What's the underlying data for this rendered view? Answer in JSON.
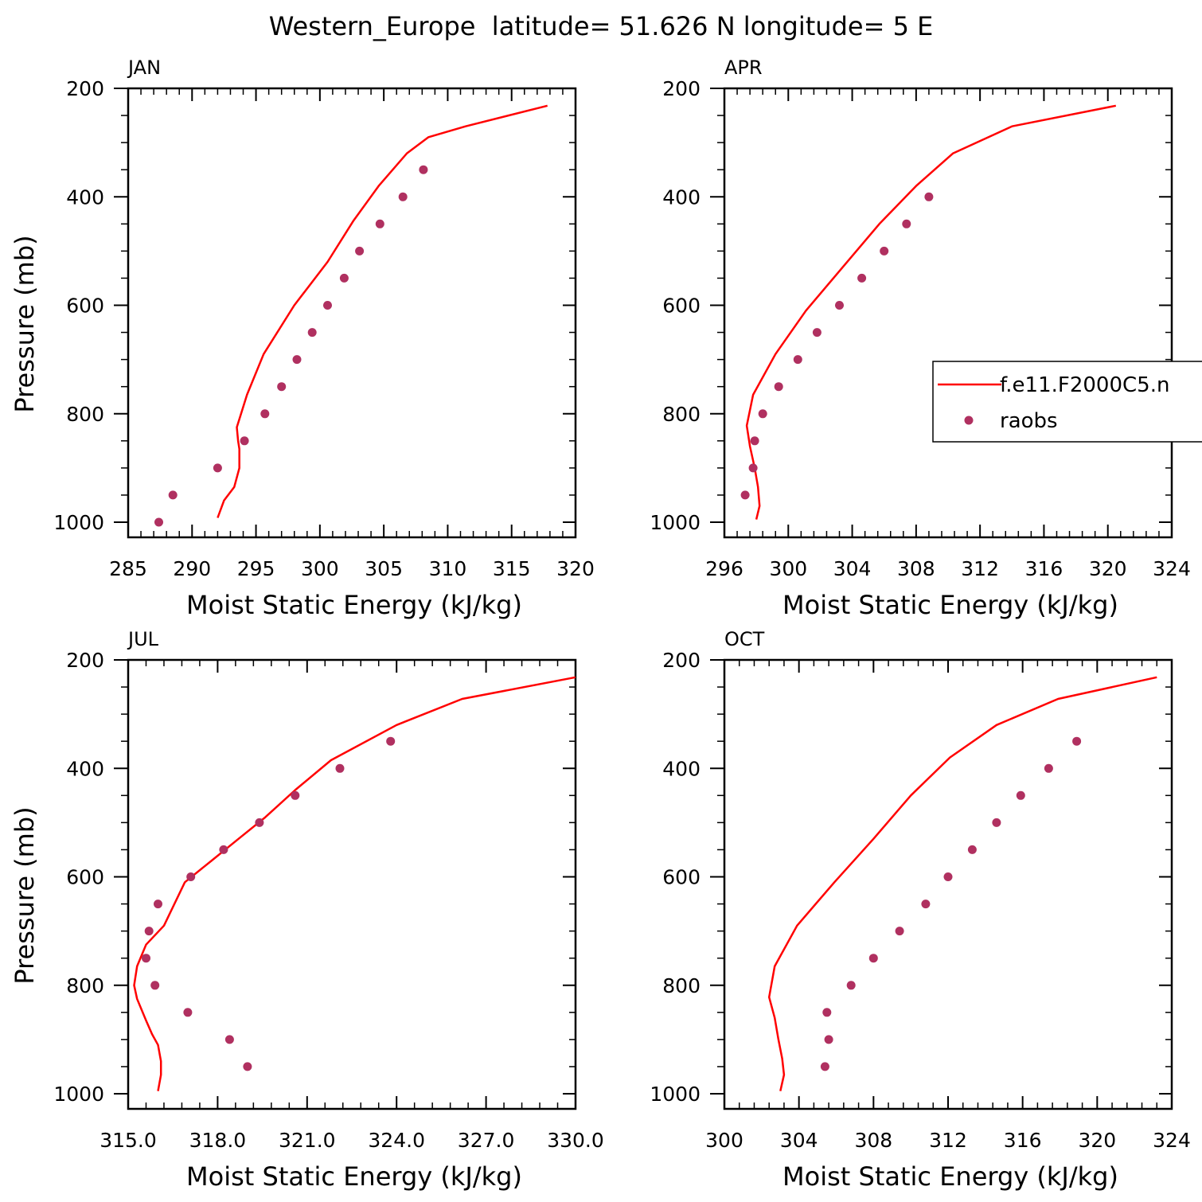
{
  "title": "Western_Europe  latitude= 51.626 N longitude= 5 E",
  "colors": {
    "model": "#ff0000",
    "obs": "#b03060",
    "axis": "#000000"
  },
  "legend": {
    "model_label": "f.e11.F2000C5.n",
    "obs_label": "raobs"
  },
  "chart_data": [
    {
      "type": "line",
      "panel": "JAN",
      "xlabel": "Moist Static Energy (kJ/kg)",
      "ylabel": "Pressure (mb)",
      "xlim": [
        285,
        320
      ],
      "xticks": [
        285,
        290,
        295,
        300,
        305,
        310,
        315,
        320
      ],
      "xtick_labels": [
        "285",
        "290",
        "295",
        "300",
        "305",
        "310",
        "315",
        "320"
      ],
      "ylim": [
        200,
        1000
      ],
      "yticks": [
        200,
        400,
        600,
        800,
        1000
      ],
      "ytick_labels": [
        "200",
        "400",
        "600",
        "800",
        "1000"
      ],
      "series": [
        {
          "kind": "line",
          "x": [
            292.0,
            292.5,
            293.3,
            293.7,
            293.7,
            293.6,
            293.5,
            294.3,
            295.6,
            298.0,
            300.6,
            302.6,
            304.6,
            306.8,
            308.5,
            311.4,
            317.8
          ],
          "y": [
            992,
            960,
            935,
            900,
            865,
            850,
            825,
            765,
            690,
            600,
            520,
            445,
            380,
            320,
            290,
            270,
            232
          ]
        },
        {
          "kind": "scatter",
          "x": [
            287.4,
            288.5,
            292.0,
            294.1,
            295.7,
            297.0,
            298.2,
            299.4,
            300.6,
            301.9,
            303.1,
            304.7,
            306.5,
            308.1
          ],
          "y": [
            1000,
            950,
            900,
            850,
            800,
            750,
            700,
            650,
            600,
            550,
            500,
            450,
            400,
            350
          ]
        }
      ]
    },
    {
      "type": "line",
      "panel": "APR",
      "xlabel": "Moist Static Energy (kJ/kg)",
      "ylabel": "",
      "xlim": [
        296,
        324
      ],
      "xticks": [
        296,
        300,
        304,
        308,
        312,
        316,
        320,
        324
      ],
      "xtick_labels": [
        "296",
        "300",
        "304",
        "308",
        "312",
        "316",
        "320",
        "324"
      ],
      "ylim": [
        200,
        1000
      ],
      "yticks": [
        200,
        400,
        600,
        800,
        1000
      ],
      "ytick_labels": [
        "200",
        "400",
        "600",
        "800",
        "1000"
      ],
      "series": [
        {
          "kind": "line",
          "x": [
            298.0,
            298.2,
            298.1,
            297.9,
            297.6,
            297.4,
            297.8,
            299.2,
            301.1,
            303.4,
            305.7,
            308.0,
            310.3,
            314.0,
            320.5
          ],
          "y": [
            995,
            970,
            935,
            900,
            860,
            822,
            765,
            690,
            610,
            530,
            450,
            380,
            320,
            270,
            232
          ]
        },
        {
          "kind": "scatter",
          "x": [
            297.3,
            297.8,
            297.9,
            298.4,
            299.4,
            300.6,
            301.8,
            303.2,
            304.6,
            306.0,
            307.4,
            308.8
          ],
          "y": [
            950,
            900,
            850,
            800,
            750,
            700,
            650,
            600,
            550,
            500,
            450,
            400
          ]
        }
      ]
    },
    {
      "type": "line",
      "panel": "JUL",
      "xlabel": "Moist Static Energy (kJ/kg)",
      "ylabel": "Pressure (mb)",
      "xlim": [
        315,
        330
      ],
      "xticks": [
        315,
        318,
        321,
        324,
        327,
        330
      ],
      "xtick_labels": [
        "315.0",
        "318.0",
        "321.0",
        "324.0",
        "327.0",
        "330.0"
      ],
      "ylim": [
        200,
        1000
      ],
      "yticks": [
        200,
        400,
        600,
        800,
        1000
      ],
      "ytick_labels": [
        "200",
        "400",
        "600",
        "800",
        "1000"
      ],
      "series": [
        {
          "kind": "line",
          "x": [
            316.0,
            316.1,
            316.1,
            316.0,
            315.8,
            315.6,
            315.3,
            315.2,
            315.3,
            315.6,
            316.2,
            316.9,
            317.8,
            318.7,
            319.6,
            320.6,
            321.8,
            324.0,
            326.2,
            330.0
          ],
          "y": [
            995,
            965,
            940,
            910,
            890,
            865,
            825,
            800,
            765,
            725,
            690,
            610,
            570,
            530,
            490,
            440,
            385,
            320,
            272,
            232
          ]
        },
        {
          "kind": "scatter",
          "x": [
            319.0,
            318.4,
            317.0,
            315.9,
            315.6,
            315.7,
            316.0,
            317.1,
            318.2,
            319.4,
            320.6,
            322.1,
            323.8
          ],
          "y": [
            950,
            900,
            850,
            800,
            750,
            700,
            650,
            600,
            550,
            500,
            450,
            400,
            350
          ]
        }
      ]
    },
    {
      "type": "line",
      "panel": "OCT",
      "xlabel": "Moist Static Energy (kJ/kg)",
      "ylabel": "",
      "xlim": [
        300,
        324
      ],
      "xticks": [
        300,
        304,
        308,
        312,
        316,
        320,
        324
      ],
      "xtick_labels": [
        "300",
        "304",
        "308",
        "312",
        "316",
        "320",
        "324"
      ],
      "ylim": [
        200,
        1000
      ],
      "yticks": [
        200,
        400,
        600,
        800,
        1000
      ],
      "ytick_labels": [
        "200",
        "400",
        "600",
        "800",
        "1000"
      ],
      "series": [
        {
          "kind": "line",
          "x": [
            303.0,
            303.2,
            303.1,
            302.9,
            302.7,
            302.4,
            302.7,
            303.9,
            305.9,
            308.0,
            310.0,
            312.1,
            314.6,
            317.9,
            323.2
          ],
          "y": [
            995,
            965,
            935,
            900,
            860,
            822,
            765,
            690,
            610,
            530,
            450,
            380,
            320,
            272,
            232
          ]
        },
        {
          "kind": "scatter",
          "x": [
            305.4,
            305.6,
            305.5,
            306.8,
            308.0,
            309.4,
            310.8,
            312.0,
            313.3,
            314.6,
            315.9,
            317.4,
            318.9
          ],
          "y": [
            950,
            900,
            850,
            800,
            750,
            700,
            650,
            600,
            550,
            500,
            450,
            400,
            350
          ]
        }
      ]
    }
  ]
}
